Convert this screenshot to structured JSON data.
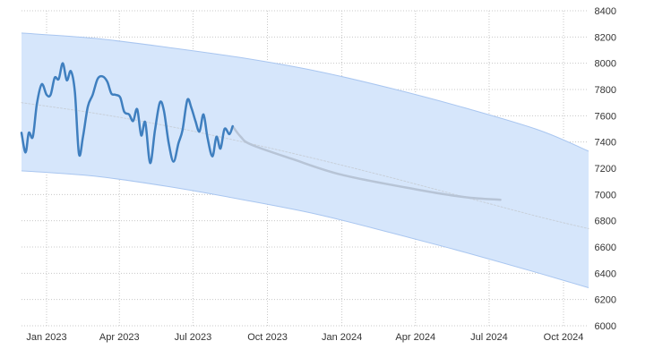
{
  "chart_data": {
    "type": "line",
    "title": "",
    "xlabel": "",
    "ylabel": "",
    "ylim": [
      6000,
      8400
    ],
    "xlim": [
      "2022-12-01",
      "2024-11-01"
    ],
    "grid": true,
    "y_axis_side": "right",
    "y_ticks": [
      6000,
      6200,
      6400,
      6600,
      6800,
      7000,
      7200,
      7400,
      7600,
      7800,
      8000,
      8200,
      8400
    ],
    "x_ticks": [
      {
        "date": "2023-01-01",
        "label": "Jan 2023"
      },
      {
        "date": "2023-04-01",
        "label": "Apr 2023"
      },
      {
        "date": "2023-07-01",
        "label": "Jul 2023"
      },
      {
        "date": "2023-10-01",
        "label": "Oct 2023"
      },
      {
        "date": "2024-01-01",
        "label": "Jan 2024"
      },
      {
        "date": "2024-04-01",
        "label": "Apr 2024"
      },
      {
        "date": "2024-07-01",
        "label": "Jul 2024"
      },
      {
        "date": "2024-10-01",
        "label": "Oct 2024"
      }
    ],
    "colors": {
      "actual": "#3f7fbf",
      "forecast": "#b7c4d6",
      "trend": "#c8d0da",
      "band_fill": "#d6e6fb",
      "band_edge": "#a9c6f0",
      "grid": "#c8c8c8"
    },
    "series": [
      {
        "role": "actual",
        "points": [
          [
            "2022-12-01",
            7470
          ],
          [
            "2022-12-06",
            7320
          ],
          [
            "2022-12-10",
            7470
          ],
          [
            "2022-12-15",
            7440
          ],
          [
            "2022-12-20",
            7690
          ],
          [
            "2022-12-26",
            7840
          ],
          [
            "2023-01-01",
            7760
          ],
          [
            "2023-01-06",
            7760
          ],
          [
            "2023-01-11",
            7890
          ],
          [
            "2023-01-16",
            7880
          ],
          [
            "2023-01-21",
            8000
          ],
          [
            "2023-01-26",
            7870
          ],
          [
            "2023-01-31",
            7940
          ],
          [
            "2023-02-05",
            7780
          ],
          [
            "2023-02-10",
            7310
          ],
          [
            "2023-02-15",
            7440
          ],
          [
            "2023-02-21",
            7670
          ],
          [
            "2023-02-27",
            7760
          ],
          [
            "2023-03-05",
            7880
          ],
          [
            "2023-03-11",
            7900
          ],
          [
            "2023-03-17",
            7860
          ],
          [
            "2023-03-22",
            7770
          ],
          [
            "2023-03-27",
            7760
          ],
          [
            "2023-04-02",
            7740
          ],
          [
            "2023-04-07",
            7630
          ],
          [
            "2023-04-13",
            7610
          ],
          [
            "2023-04-18",
            7560
          ],
          [
            "2023-04-23",
            7650
          ],
          [
            "2023-04-28",
            7450
          ],
          [
            "2023-05-03",
            7550
          ],
          [
            "2023-05-09",
            7240
          ],
          [
            "2023-05-15",
            7490
          ],
          [
            "2023-05-21",
            7700
          ],
          [
            "2023-05-26",
            7640
          ],
          [
            "2023-06-01",
            7390
          ],
          [
            "2023-06-07",
            7250
          ],
          [
            "2023-06-13",
            7390
          ],
          [
            "2023-06-18",
            7490
          ],
          [
            "2023-06-24",
            7720
          ],
          [
            "2023-06-29",
            7660
          ],
          [
            "2023-07-04",
            7560
          ],
          [
            "2023-07-09",
            7480
          ],
          [
            "2023-07-14",
            7610
          ],
          [
            "2023-07-19",
            7430
          ],
          [
            "2023-07-25",
            7290
          ],
          [
            "2023-07-30",
            7440
          ],
          [
            "2023-08-04",
            7350
          ],
          [
            "2023-08-09",
            7500
          ],
          [
            "2023-08-15",
            7460
          ],
          [
            "2023-08-19",
            7520
          ]
        ]
      },
      {
        "role": "forecast",
        "points": [
          [
            "2023-08-19",
            7520
          ],
          [
            "2023-08-29",
            7440
          ],
          [
            "2023-09-11",
            7380
          ],
          [
            "2023-11-01",
            7270
          ],
          [
            "2024-01-01",
            7150
          ],
          [
            "2024-04-01",
            7040
          ],
          [
            "2024-06-01",
            6980
          ],
          [
            "2024-07-15",
            6960
          ]
        ]
      },
      {
        "role": "trend",
        "points": [
          [
            "2022-12-01",
            7700
          ],
          [
            "2023-03-01",
            7620
          ],
          [
            "2023-06-01",
            7520
          ],
          [
            "2023-09-01",
            7400
          ],
          [
            "2023-12-01",
            7270
          ],
          [
            "2024-03-01",
            7130
          ],
          [
            "2024-06-01",
            6980
          ],
          [
            "2024-09-01",
            6830
          ],
          [
            "2024-11-01",
            6740
          ]
        ]
      }
    ],
    "band": {
      "upper": [
        [
          "2022-12-01",
          8230
        ],
        [
          "2023-03-01",
          8190
        ],
        [
          "2023-06-01",
          8120
        ],
        [
          "2023-09-01",
          8040
        ],
        [
          "2023-12-01",
          7940
        ],
        [
          "2024-03-01",
          7810
        ],
        [
          "2024-06-01",
          7660
        ],
        [
          "2024-09-01",
          7490
        ],
        [
          "2024-11-01",
          7330
        ]
      ],
      "lower": [
        [
          "2022-12-01",
          7180
        ],
        [
          "2023-03-01",
          7140
        ],
        [
          "2023-06-01",
          7060
        ],
        [
          "2023-09-01",
          6960
        ],
        [
          "2023-12-01",
          6850
        ],
        [
          "2024-03-01",
          6710
        ],
        [
          "2024-06-01",
          6560
        ],
        [
          "2024-09-01",
          6400
        ],
        [
          "2024-11-01",
          6290
        ]
      ]
    }
  }
}
